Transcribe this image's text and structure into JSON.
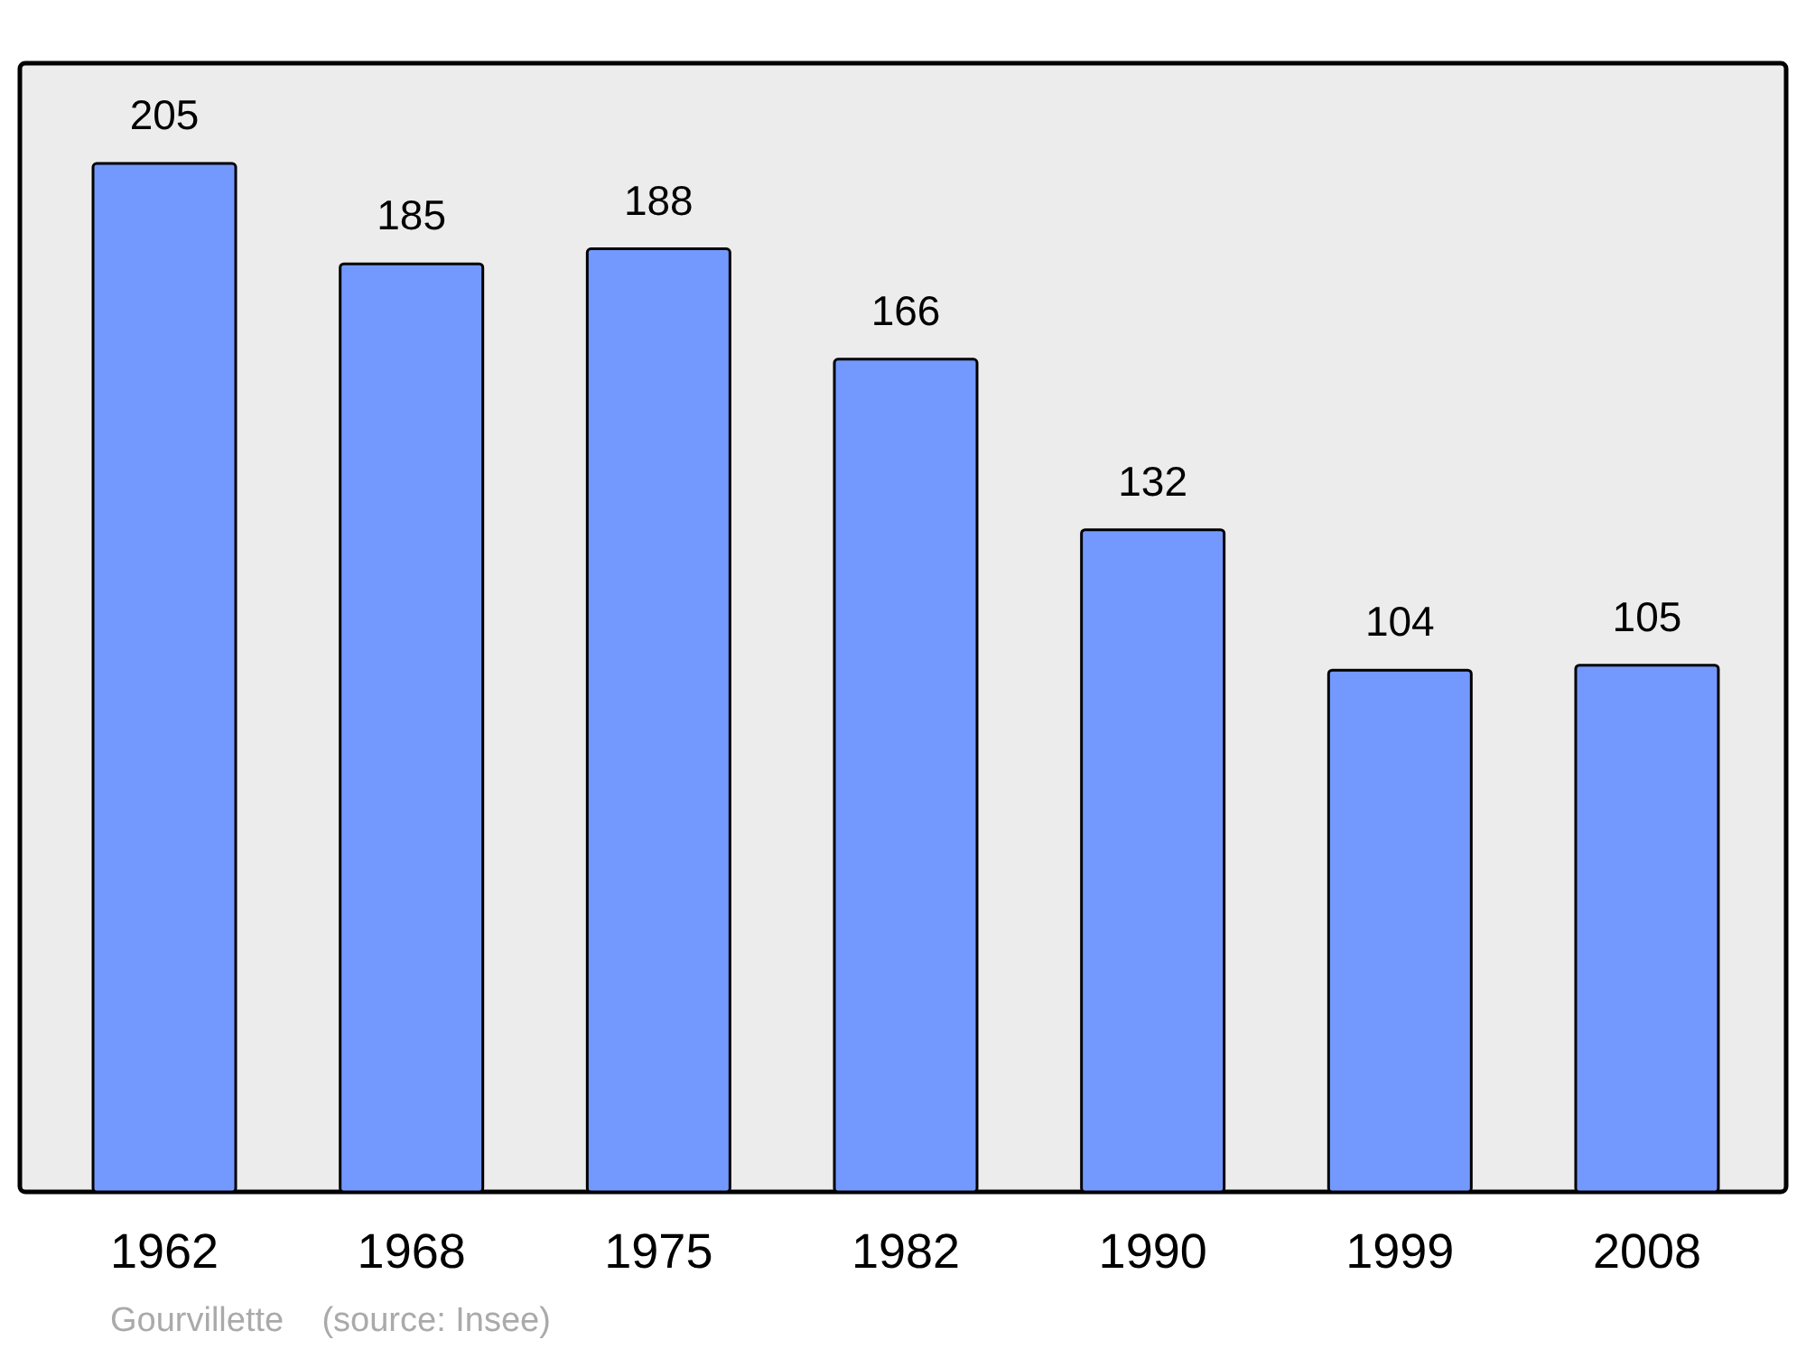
{
  "chart_data": {
    "type": "bar",
    "categories": [
      "1962",
      "1968",
      "1975",
      "1982",
      "1990",
      "1999",
      "2008"
    ],
    "values": [
      205,
      185,
      188,
      166,
      132,
      104,
      105
    ],
    "color": "#7399ff",
    "ylim": [
      0,
      225
    ],
    "data_labels": true,
    "tick_labels": "x",
    "annotations": [
      "Gourvillette    (source: Insee)"
    ]
  }
}
